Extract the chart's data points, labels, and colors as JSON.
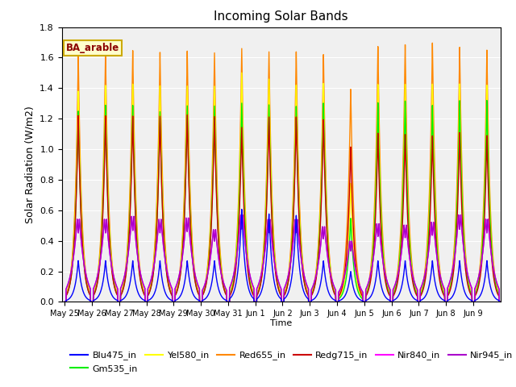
{
  "title": "Incoming Solar Bands",
  "xlabel": "Time",
  "ylabel": "Solar Radiation (W/m2)",
  "ylim": [
    0,
    1.8
  ],
  "num_days": 16,
  "tick_labels": [
    "May 25",
    "May 26",
    "May 27",
    "May 28",
    "May 29",
    "May 30",
    "May 31",
    "Jun 1",
    "Jun 2",
    "Jun 3",
    "Jun 4",
    "Jun 5",
    "Jun 6",
    "Jun 7",
    "Jun 8",
    "Jun 9"
  ],
  "annotation_text": "BA_arable",
  "legend_entries": [
    {
      "label": "Blu475_in",
      "color": "#0000ff"
    },
    {
      "label": "Gm535_in",
      "color": "#00ee00"
    },
    {
      "label": "Yel580_in",
      "color": "#ffff00"
    },
    {
      "label": "Red655_in",
      "color": "#ff8800"
    },
    {
      "label": "Redg715_in",
      "color": "#cc0000"
    },
    {
      "label": "Nir840_in",
      "color": "#ff00ff"
    },
    {
      "label": "Nir945_in",
      "color": "#aa00cc"
    }
  ],
  "bg_color": "#f0f0f0",
  "grid_color": "#d8d8d8",
  "day_peaks": [
    {
      "blu": 0.27,
      "grn": 1.25,
      "yel": 1.38,
      "red": 1.62,
      "redg": 1.22,
      "nir840": 0.57,
      "nir945": 0.57
    },
    {
      "blu": 0.27,
      "grn": 1.29,
      "yel": 1.42,
      "red": 1.64,
      "redg": 1.22,
      "nir840": 0.57,
      "nir945": 0.57
    },
    {
      "blu": 0.27,
      "grn": 1.29,
      "yel": 1.43,
      "red": 1.65,
      "redg": 1.22,
      "nir840": 0.59,
      "nir945": 0.59
    },
    {
      "blu": 0.27,
      "grn": 1.25,
      "yel": 1.42,
      "red": 1.64,
      "redg": 1.22,
      "nir840": 0.57,
      "nir945": 0.57
    },
    {
      "blu": 0.27,
      "grn": 1.29,
      "yel": 1.42,
      "red": 1.65,
      "redg": 1.23,
      "nir840": 0.58,
      "nir945": 0.58
    },
    {
      "blu": 0.27,
      "grn": 1.29,
      "yel": 1.42,
      "red": 1.64,
      "redg": 1.22,
      "nir840": 0.5,
      "nir945": 0.5
    },
    {
      "blu": 0.61,
      "grn": 1.31,
      "yel": 1.51,
      "red": 1.67,
      "redg": 1.15,
      "nir840": 0.6,
      "nir945": 0.6
    },
    {
      "blu": 0.58,
      "grn": 1.3,
      "yel": 1.47,
      "red": 1.65,
      "redg": 1.22,
      "nir840": 0.57,
      "nir945": 0.57
    },
    {
      "blu": 0.57,
      "grn": 1.29,
      "yel": 1.43,
      "red": 1.65,
      "redg": 1.22,
      "nir840": 0.57,
      "nir945": 0.57
    },
    {
      "blu": 0.27,
      "grn": 1.31,
      "yel": 1.44,
      "red": 1.63,
      "redg": 1.2,
      "nir840": 0.52,
      "nir945": 0.52
    },
    {
      "blu": 0.2,
      "grn": 0.55,
      "yel": 0.78,
      "red": 1.4,
      "redg": 1.02,
      "nir840": 0.42,
      "nir945": 0.42
    },
    {
      "blu": 0.27,
      "grn": 1.31,
      "yel": 1.43,
      "red": 1.68,
      "redg": 1.11,
      "nir840": 0.54,
      "nir945": 0.54
    },
    {
      "blu": 0.27,
      "grn": 1.32,
      "yel": 1.43,
      "red": 1.69,
      "redg": 1.1,
      "nir840": 0.53,
      "nir945": 0.53
    },
    {
      "blu": 0.27,
      "grn": 1.29,
      "yel": 1.43,
      "red": 1.7,
      "redg": 1.09,
      "nir840": 0.55,
      "nir945": 0.55
    },
    {
      "blu": 0.27,
      "grn": 1.32,
      "yel": 1.43,
      "red": 1.67,
      "redg": 1.11,
      "nir840": 0.6,
      "nir945": 0.6
    },
    {
      "blu": 0.27,
      "grn": 1.32,
      "yel": 1.42,
      "red": 1.65,
      "redg": 1.09,
      "nir840": 0.57,
      "nir945": 0.57
    }
  ]
}
